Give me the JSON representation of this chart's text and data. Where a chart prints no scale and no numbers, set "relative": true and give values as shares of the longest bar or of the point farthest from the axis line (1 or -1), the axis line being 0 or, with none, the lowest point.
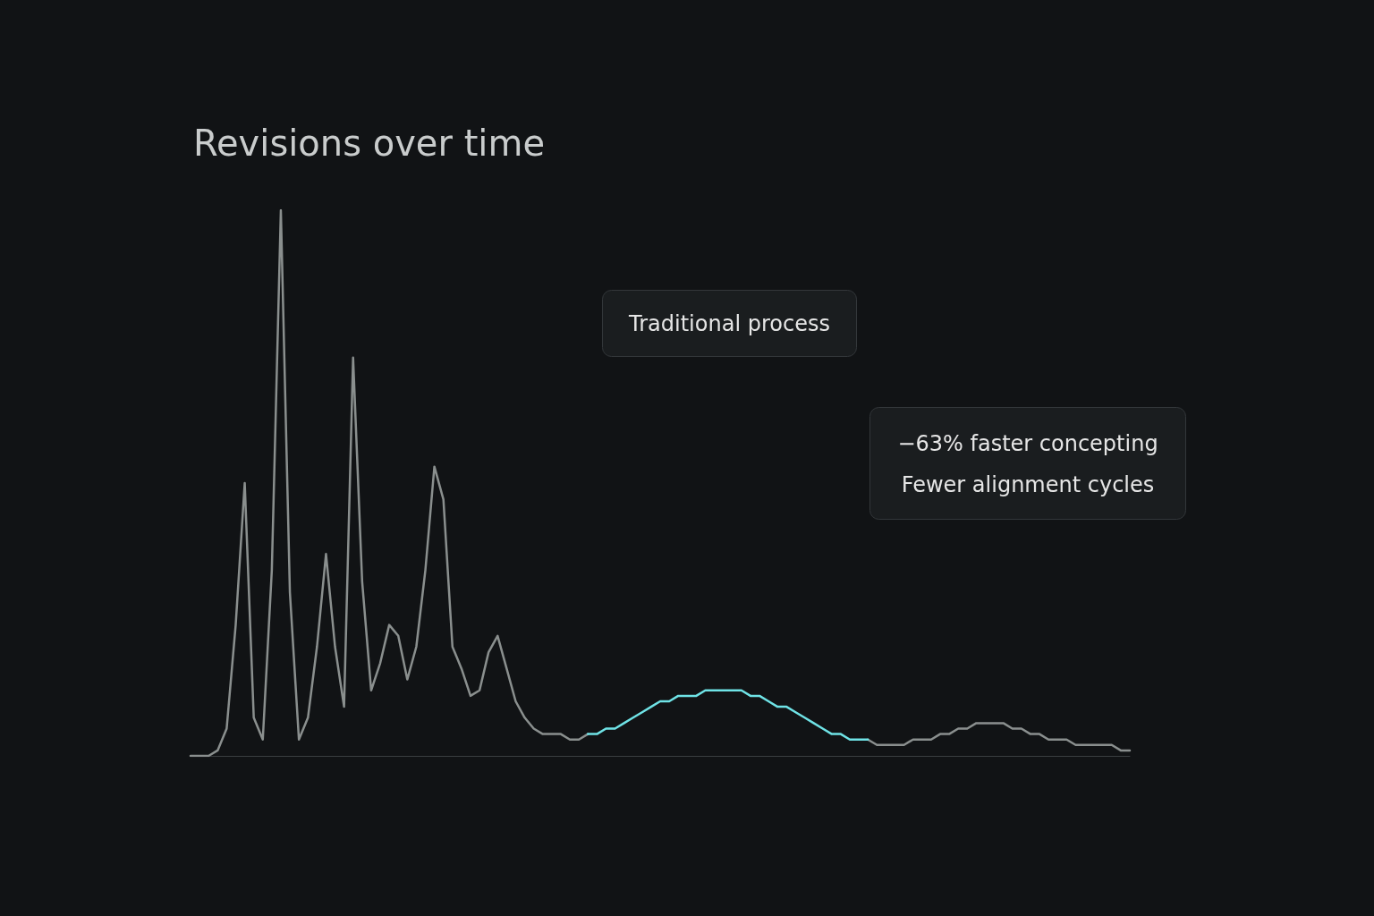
{
  "chart_data": {
    "type": "line",
    "title": "Revisions over time",
    "relative": true,
    "grid": false,
    "marker": "none",
    "line_style": "solid",
    "categories": [
      null,
      null,
      null,
      null,
      null,
      null,
      null,
      null,
      null,
      null,
      null,
      null,
      null,
      null,
      null,
      null,
      null,
      null,
      null,
      null,
      null,
      null,
      null,
      null,
      null,
      null,
      null,
      null,
      null,
      null,
      null,
      null,
      null,
      null,
      null,
      null,
      null,
      null,
      null,
      null,
      null,
      null,
      null,
      null,
      null,
      null,
      null,
      null,
      null,
      null,
      null,
      null,
      null,
      null,
      null,
      null,
      null,
      null,
      null,
      null,
      null,
      null,
      null,
      null,
      null,
      null,
      null,
      null,
      null,
      null,
      null,
      null,
      null,
      null,
      null,
      null,
      null,
      null,
      null,
      null,
      null,
      null,
      null,
      null,
      null,
      null,
      null,
      null,
      null,
      null,
      null,
      null,
      null,
      null,
      null,
      null,
      null,
      null,
      null,
      null,
      null,
      null,
      null,
      null,
      null
    ],
    "series": [
      {
        "color": "#8a8f8e",
        "values": [
          0,
          0,
          0,
          0.01,
          0.05,
          0.24,
          0.5,
          0.07,
          0.03,
          0.34,
          1,
          0.3,
          0.03,
          0.07,
          0.2,
          0.37,
          0.2,
          0.09,
          0.73,
          0.32,
          0.12,
          0.17,
          0.24,
          0.22,
          0.14,
          0.2,
          0.34,
          0.53,
          0.47,
          0.2,
          0.16,
          0.11,
          0.12,
          0.19,
          0.22,
          0.16,
          0.1,
          0.07,
          0.05,
          0.04,
          0.04,
          0.04,
          0.03,
          0.03,
          0.04,
          null,
          null,
          null,
          null,
          null,
          null,
          null,
          null,
          null,
          null,
          null,
          null,
          null,
          null,
          null,
          null,
          null,
          null,
          null,
          null,
          null,
          null,
          null,
          null,
          null,
          null,
          null,
          null,
          null,
          null,
          0.03,
          0.02,
          0.02,
          0.02,
          0.02,
          0.03,
          0.03,
          0.03,
          0.04,
          0.04,
          0.05,
          0.05,
          0.06,
          0.06,
          0.06,
          0.06,
          0.05,
          0.05,
          0.04,
          0.04,
          0.03,
          0.03,
          0.03,
          0.02,
          0.02,
          0.02,
          0.02,
          0.02,
          0.01,
          0.01
        ]
      },
      {
        "color": "#6fe3e6",
        "values": [
          null,
          null,
          null,
          null,
          null,
          null,
          null,
          null,
          null,
          null,
          null,
          null,
          null,
          null,
          null,
          null,
          null,
          null,
          null,
          null,
          null,
          null,
          null,
          null,
          null,
          null,
          null,
          null,
          null,
          null,
          null,
          null,
          null,
          null,
          null,
          null,
          null,
          null,
          null,
          null,
          null,
          null,
          null,
          null,
          0.04,
          0.04,
          0.05,
          0.05,
          0.06,
          0.07,
          0.08,
          0.09,
          0.1,
          0.1,
          0.11,
          0.11,
          0.11,
          0.12,
          0.12,
          0.12,
          0.12,
          0.12,
          0.11,
          0.11,
          0.1,
          0.09,
          0.09,
          0.08,
          0.07,
          0.06,
          0.05,
          0.04,
          0.04,
          0.03,
          0.03,
          0.03,
          null,
          null,
          null,
          null,
          null,
          null,
          null,
          null,
          null,
          null,
          null,
          null,
          null,
          null,
          null,
          null,
          null,
          null,
          null,
          null,
          null,
          null,
          null,
          null,
          null,
          null,
          null,
          null,
          null
        ]
      }
    ],
    "annotations": [
      "Traditional process",
      "−63% faster concepting",
      "Fewer alignment cycles"
    ]
  }
}
